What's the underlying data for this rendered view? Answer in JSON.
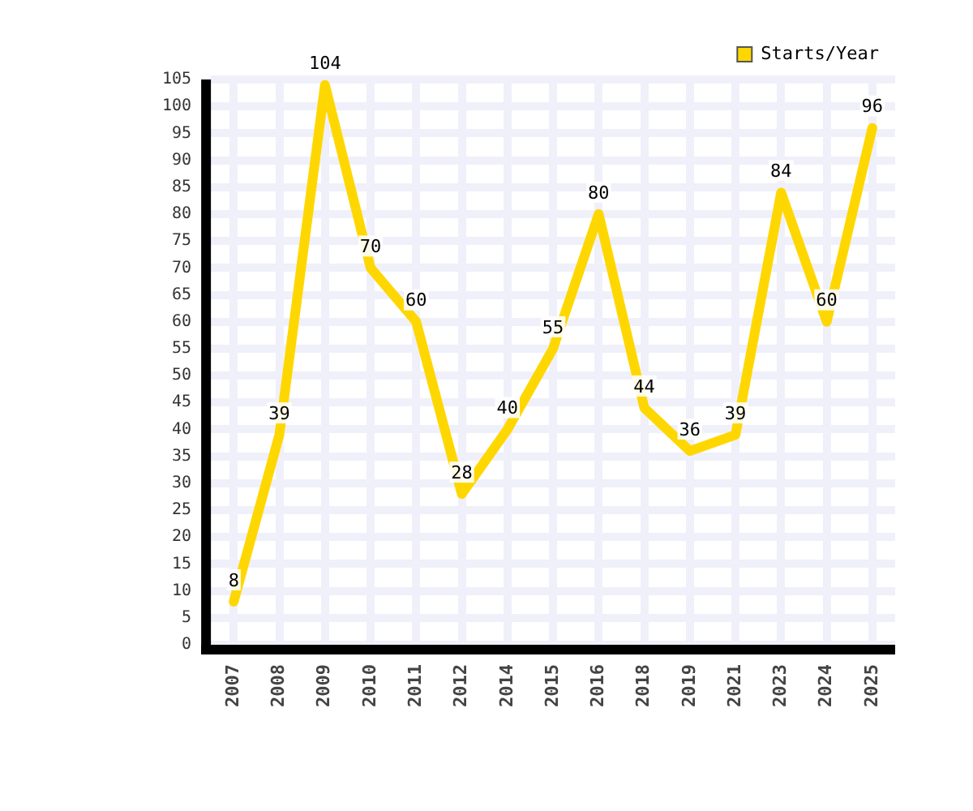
{
  "chart_data": {
    "type": "line",
    "categories": [
      "2007",
      "2008",
      "2009",
      "2010",
      "2011",
      "2012",
      "2014",
      "2015",
      "2016",
      "2018",
      "2019",
      "2021",
      "2023",
      "2024",
      "2025"
    ],
    "series": [
      {
        "name": "Starts/Year",
        "color": "#ffd700",
        "values": [
          8,
          39,
          104,
          70,
          60,
          28,
          40,
          55,
          80,
          44,
          36,
          39,
          84,
          60,
          96
        ]
      }
    ],
    "ylim": [
      0,
      105
    ],
    "yticks": [
      0,
      5,
      10,
      15,
      20,
      25,
      30,
      35,
      40,
      45,
      50,
      55,
      60,
      65,
      70,
      75,
      80,
      85,
      90,
      95,
      100,
      105
    ],
    "grid": true,
    "legend": "top right",
    "marker": "none",
    "line_style": "solid",
    "data_labels": true
  }
}
